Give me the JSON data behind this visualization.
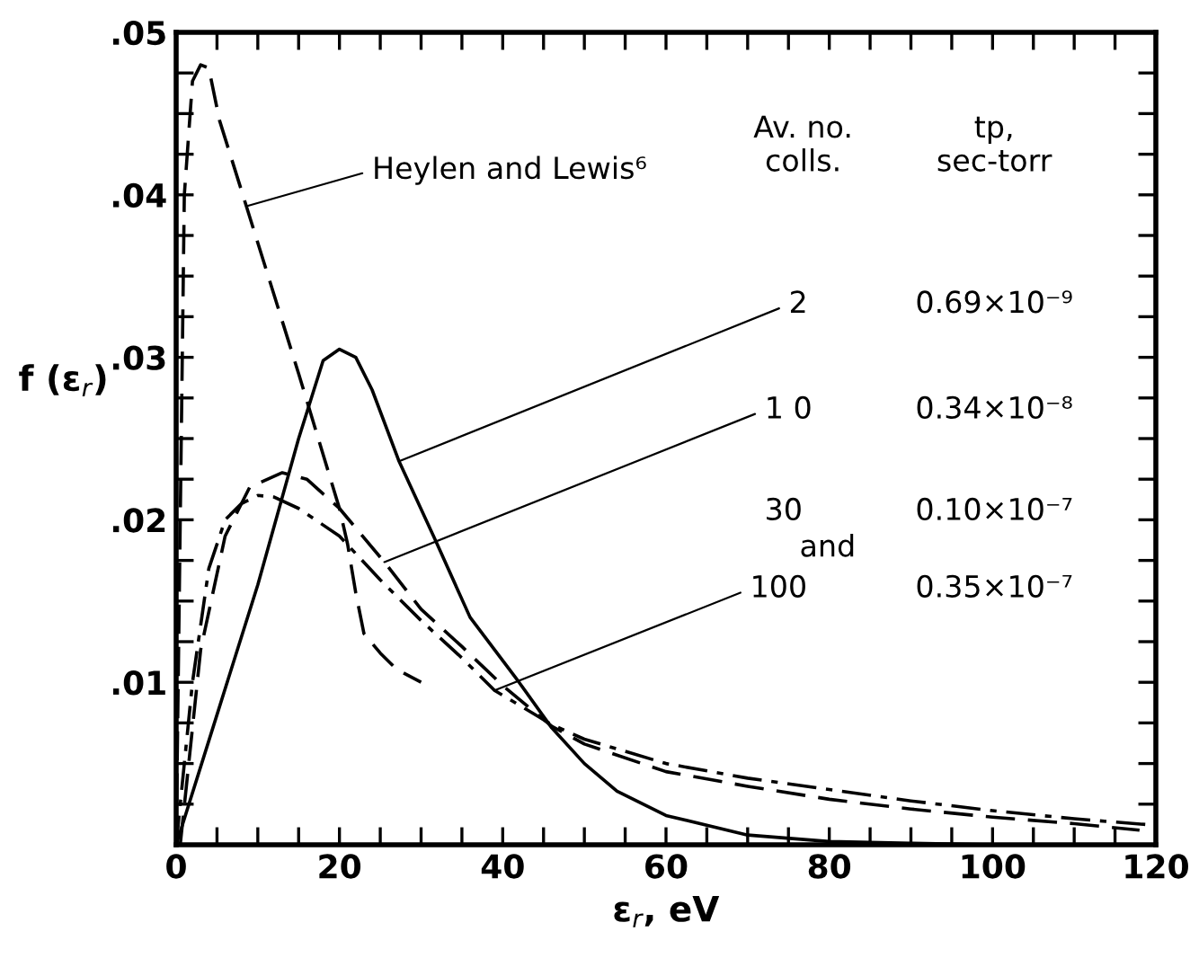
{
  "chart_data": {
    "type": "line",
    "xlabel": "ε$_{r}$, eV",
    "ylabel": "f (ε$_{r}$)",
    "xlim": [
      0,
      120
    ],
    "ylim": [
      0,
      0.05
    ],
    "xticks": [
      0,
      {
        "value": 5,
        "label": null
      },
      {
        "value": 10,
        "label": null
      },
      {
        "value": 15,
        "label": null
      },
      20,
      {
        "value": 25,
        "label": null
      },
      {
        "value": 30,
        "label": null
      },
      {
        "value": 35,
        "label": null
      },
      40,
      {
        "value": 45,
        "label": null
      },
      {
        "value": 50,
        "label": null
      },
      {
        "value": 55,
        "label": null
      },
      60,
      {
        "value": 65,
        "label": null
      },
      {
        "value": 70,
        "label": null
      },
      {
        "value": 75,
        "label": null
      },
      80,
      {
        "value": 85,
        "label": null
      },
      {
        "value": 90,
        "label": null
      },
      {
        "value": 95,
        "label": null
      },
      100,
      {
        "value": 105,
        "label": null
      },
      {
        "value": 110,
        "label": null
      },
      {
        "value": 115,
        "label": null
      },
      120
    ],
    "yticks": [
      {
        "value": 0,
        "label": null
      },
      {
        "value": 0.0025,
        "label": null
      },
      {
        "value": 0.005,
        "label": null
      },
      {
        "value": 0.0075,
        "label": null
      },
      {
        "value": 0.01,
        "label": ".01"
      },
      {
        "value": 0.0125,
        "label": null
      },
      {
        "value": 0.015,
        "label": null
      },
      {
        "value": 0.0175,
        "label": null
      },
      {
        "value": 0.02,
        "label": ".02"
      },
      {
        "value": 0.0225,
        "label": null
      },
      {
        "value": 0.025,
        "label": null
      },
      {
        "value": 0.0275,
        "label": null
      },
      {
        "value": 0.03,
        "label": ".03"
      },
      {
        "value": 0.0325,
        "label": null
      },
      {
        "value": 0.035,
        "label": null
      },
      {
        "value": 0.0375,
        "label": null
      },
      {
        "value": 0.04,
        "label": ".04"
      },
      {
        "value": 0.0425,
        "label": null
      },
      {
        "value": 0.045,
        "label": null
      },
      {
        "value": 0.0475,
        "label": null
      },
      {
        "value": 0.05,
        "label": ".05"
      }
    ],
    "grid": false,
    "legend": false,
    "series": [
      {
        "color": "#000000",
        "line_style": "dashed",
        "x": [
          0,
          0.5,
          1,
          2,
          3,
          4,
          5.3,
          8.6,
          15,
          20,
          21,
          22,
          23,
          25,
          27,
          30
        ],
        "values": [
          0,
          0.02,
          0.04,
          0.047,
          0.048,
          0.0478,
          0.0446,
          0.0393,
          0.029,
          0.0207,
          0.0185,
          0.0155,
          0.013,
          0.0118,
          0.0108,
          0.01
        ]
      },
      {
        "color": "#000000",
        "line_style": "solid",
        "x": [
          0,
          5,
          10,
          15,
          18,
          20,
          22,
          24,
          27.3,
          31.7,
          36,
          42,
          46,
          50,
          54,
          60,
          70,
          80,
          90,
          100
        ],
        "values": [
          0,
          0.008,
          0.016,
          0.025,
          0.0298,
          0.0305,
          0.03,
          0.028,
          0.0236,
          0.0188,
          0.014,
          0.01,
          0.0072,
          0.005,
          0.0033,
          0.0018,
          0.0006,
          0.0002,
          0.0001,
          0
        ]
      },
      {
        "color": "#000000",
        "line_style": "dashed",
        "x": [
          0.5,
          3,
          6,
          9,
          13,
          16,
          20,
          25.5,
          30,
          35,
          40,
          46,
          50,
          60,
          70,
          80,
          90,
          100,
          110,
          118
        ],
        "values": [
          0,
          0.012,
          0.019,
          0.022,
          0.0229,
          0.0225,
          0.0207,
          0.0174,
          0.0145,
          0.0122,
          0.0098,
          0.0073,
          0.0062,
          0.0045,
          0.0036,
          0.0028,
          0.0022,
          0.0017,
          0.0013,
          0.0009
        ]
      },
      {
        "color": "#000000",
        "line_style": "dashdot",
        "x": [
          0,
          2,
          4,
          6,
          8,
          10,
          12,
          15,
          20,
          25,
          30,
          35,
          39,
          46,
          50,
          60,
          70,
          80,
          90,
          100,
          110,
          120
        ],
        "values": [
          0,
          0.01,
          0.017,
          0.02,
          0.021,
          0.0215,
          0.0214,
          0.0207,
          0.019,
          0.0163,
          0.0138,
          0.0115,
          0.0095,
          0.0074,
          0.0065,
          0.005,
          0.0041,
          0.0034,
          0.0027,
          0.0021,
          0.0016,
          0.0012
        ]
      }
    ],
    "annotations": [
      {
        "text": "Heylen and Lewis⁶",
        "x": 8.6,
        "y": 0.0393
      },
      {
        "text": "2",
        "x": 27.3,
        "y": 0.0236
      },
      {
        "text": "1 0",
        "x": 25.5,
        "y": 0.0174
      },
      "30",
      "and",
      {
        "text": "100",
        "x": 39,
        "y": 0.0095
      },
      "Av. no.\ncolls.",
      "tp,\nsec-torr",
      "0.69×10⁻⁹",
      "0.34×10⁻⁸",
      "0.10×10⁻⁷",
      "0.35×10⁻⁷"
    ]
  }
}
